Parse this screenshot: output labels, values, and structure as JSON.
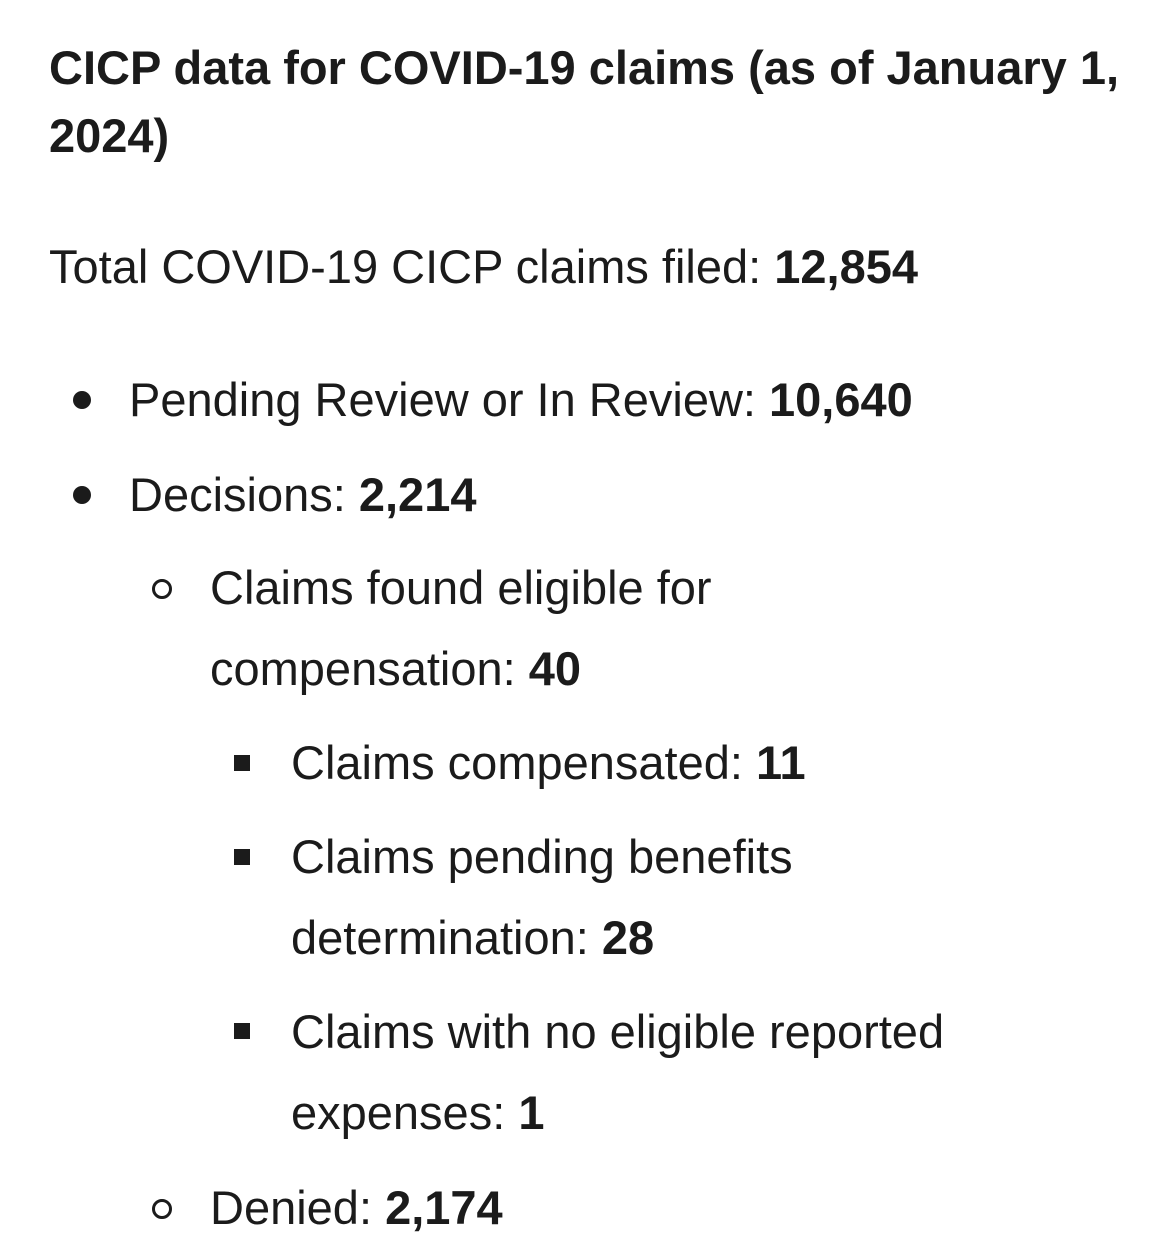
{
  "title": "CICP data for COVID-19 claims (as of January 1, 2024)",
  "total": {
    "label": "Total COVID-19 CICP claims filed: ",
    "value": "12,854"
  },
  "items": [
    {
      "label": "Pending Review or In Review: ",
      "value": "10,640"
    },
    {
      "label": "Decisions: ",
      "value": "2,214"
    }
  ],
  "decisions": [
    {
      "label_line1": "Claims found eligible for",
      "label_line2": "compensation: ",
      "value": "40"
    },
    {
      "label": "Denied: ",
      "value": "2,174"
    }
  ],
  "eligible_breakdown": [
    {
      "label": "Claims compensated: ",
      "value": "11"
    },
    {
      "label_line1": "Claims pending benefits",
      "label_line2": "determination: ",
      "value": "28"
    },
    {
      "label_line1": "Claims with no eligible reported",
      "label_line2": "expenses: ",
      "value": "1"
    }
  ]
}
